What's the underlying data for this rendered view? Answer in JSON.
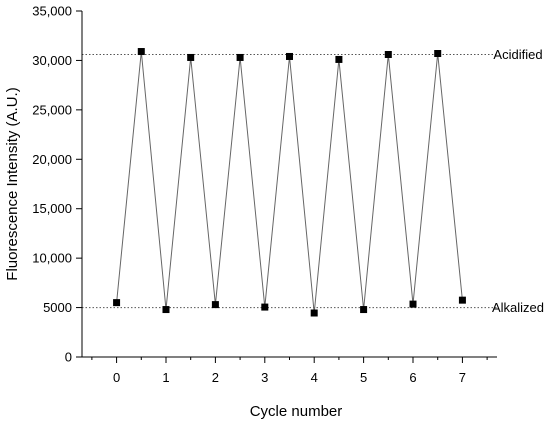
{
  "chart_data": {
    "type": "line",
    "title": "",
    "xlabel": "Cycle number",
    "ylabel": "Fluorescence Intensity (A.U.)",
    "xlim": [
      -0.7,
      7.7
    ],
    "ylim": [
      0,
      35000
    ],
    "x_ticks": [
      0,
      1,
      2,
      3,
      4,
      5,
      6,
      7
    ],
    "x_tick_labels": [
      "0",
      "1",
      "2",
      "3",
      "4",
      "5",
      "6",
      "7"
    ],
    "x_minor_ticks": [
      -0.5,
      0.5,
      1.5,
      2.5,
      3.5,
      4.5,
      5.5,
      6.5,
      7.5
    ],
    "y_ticks": [
      0,
      5000,
      10000,
      15000,
      20000,
      25000,
      30000,
      35000
    ],
    "y_tick_labels": [
      "0",
      "5000",
      "10,000",
      "15,000",
      "20,000",
      "25,000",
      "30,000",
      "35,000"
    ],
    "grid": false,
    "series": [
      {
        "x": [
          0,
          0.5,
          1,
          1.5,
          2,
          2.5,
          3,
          3.5,
          4,
          4.5,
          5,
          5.5,
          6,
          6.5,
          7
        ],
        "y": [
          5500,
          30900,
          4800,
          30300,
          5300,
          30300,
          5050,
          30400,
          4450,
          30100,
          4800,
          30600,
          5350,
          30700,
          5750
        ],
        "color": "#000000",
        "line_color": "#666666",
        "marker": "square"
      }
    ],
    "reference_lines": [
      {
        "y": 30600,
        "label": "Acidified",
        "style": "dotted"
      },
      {
        "y": 5000,
        "label": "Alkalized",
        "style": "dotted"
      }
    ]
  }
}
